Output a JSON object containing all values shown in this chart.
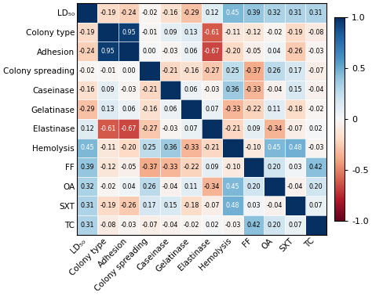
{
  "labels": [
    "LD₅₀",
    "Colony type",
    "Adhesion",
    "Colony spreading",
    "Caseinase",
    "Gelatinase",
    "Elastinase",
    "Hemolysis",
    "FF",
    "OA",
    "SXT",
    "TC"
  ],
  "matrix": [
    [
      1.0,
      -0.19,
      -0.24,
      -0.02,
      -0.16,
      -0.29,
      0.12,
      0.45,
      0.39,
      0.32,
      0.31,
      0.31
    ],
    [
      -0.19,
      1.0,
      0.95,
      -0.01,
      0.09,
      0.13,
      -0.61,
      -0.11,
      -0.12,
      -0.02,
      -0.19,
      -0.08
    ],
    [
      -0.24,
      0.95,
      1.0,
      0.0,
      -0.03,
      0.06,
      -0.67,
      -0.2,
      -0.05,
      0.04,
      -0.26,
      -0.03
    ],
    [
      -0.02,
      -0.01,
      0.0,
      1.0,
      -0.21,
      -0.16,
      -0.27,
      0.25,
      -0.37,
      0.26,
      0.17,
      -0.07
    ],
    [
      -0.16,
      0.09,
      -0.03,
      -0.21,
      1.0,
      0.06,
      -0.03,
      0.36,
      -0.33,
      -0.04,
      0.15,
      -0.04
    ],
    [
      -0.29,
      0.13,
      0.06,
      -0.16,
      0.06,
      1.0,
      0.07,
      -0.33,
      -0.22,
      0.11,
      -0.18,
      -0.02
    ],
    [
      0.12,
      -0.61,
      -0.67,
      -0.27,
      -0.03,
      0.07,
      1.0,
      -0.21,
      0.09,
      -0.34,
      -0.07,
      0.02
    ],
    [
      0.45,
      -0.11,
      -0.2,
      0.25,
      0.36,
      -0.33,
      -0.21,
      1.0,
      -0.1,
      0.45,
      0.48,
      -0.03
    ],
    [
      0.39,
      -0.12,
      -0.05,
      -0.37,
      -0.33,
      -0.22,
      0.09,
      -0.1,
      1.0,
      0.2,
      0.03,
      0.42
    ],
    [
      0.32,
      -0.02,
      0.04,
      0.26,
      -0.04,
      0.11,
      -0.34,
      0.45,
      0.2,
      1.0,
      -0.04,
      0.2
    ],
    [
      0.31,
      -0.19,
      -0.26,
      0.17,
      0.15,
      -0.18,
      -0.07,
      0.48,
      0.03,
      -0.04,
      1.0,
      0.07
    ],
    [
      0.31,
      -0.08,
      -0.03,
      -0.07,
      -0.04,
      -0.02,
      0.02,
      -0.03,
      0.42,
      0.2,
      0.07,
      1.0
    ]
  ],
  "vmin": -1.0,
  "vmax": 1.0,
  "background_color": "#ffffff",
  "text_fontsize": 5.8,
  "label_fontsize": 7.5,
  "cbar_fontsize": 8.0,
  "figsize": [
    4.74,
    3.78
  ],
  "dpi": 100,
  "cbar_ticks": [
    -1.0,
    -0.5,
    0.0,
    0.5,
    1.0
  ],
  "cbar_ticklabels": [
    "-1.0",
    "-0.5",
    "0",
    "0.5",
    "1.0"
  ]
}
